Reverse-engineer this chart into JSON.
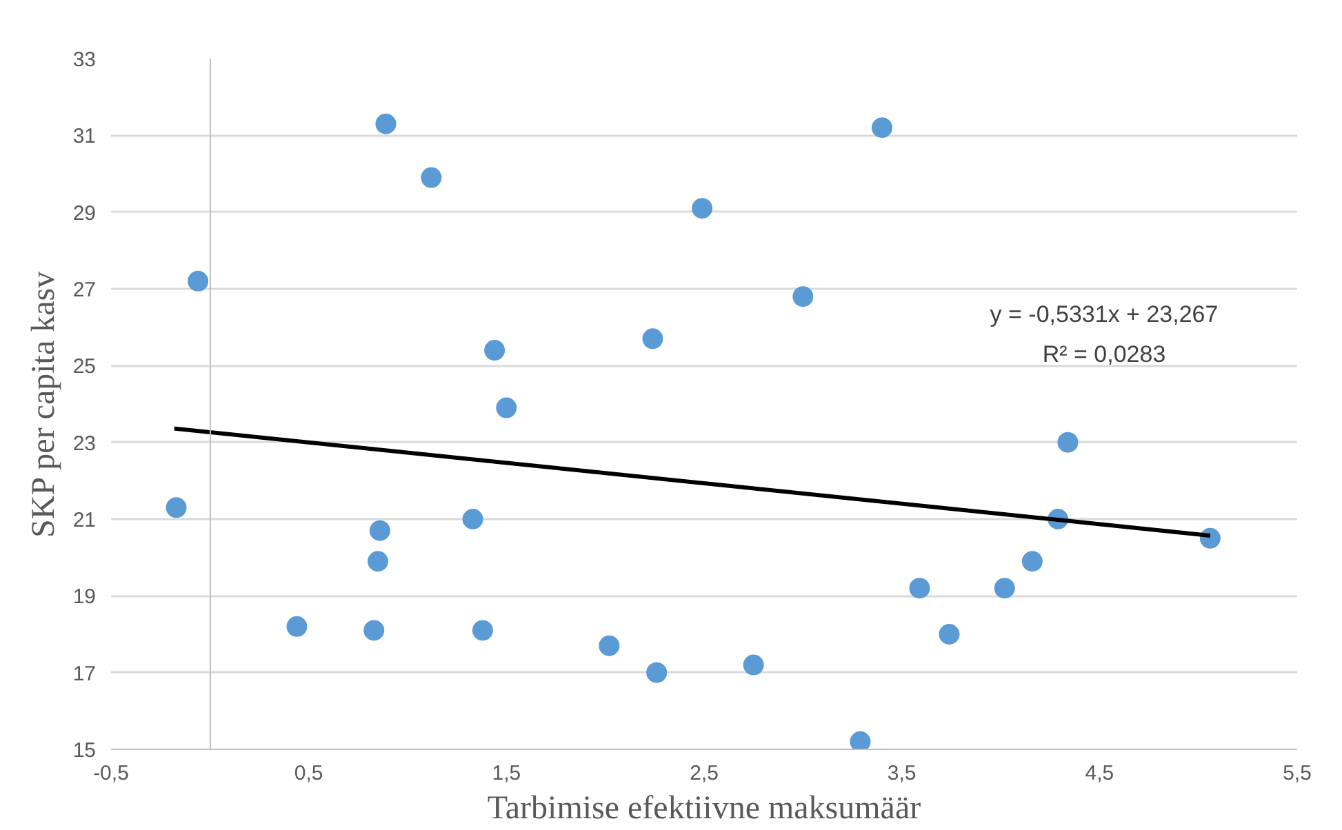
{
  "chart_data": {
    "type": "scatter",
    "xlabel": "Tarbimise efektiivne maksumäär",
    "ylabel": "SKP per capita kasv",
    "annotations": [
      "y = -0,5331x + 23,267",
      "R² = 0,0283"
    ],
    "xlim": [
      -0.5,
      5.5
    ],
    "ylim": [
      15,
      33
    ],
    "xticks": [
      {
        "value": -0.5,
        "label": "-0,5"
      },
      {
        "value": 0.5,
        "label": "0,5"
      },
      {
        "value": 1.5,
        "label": "1,5"
      },
      {
        "value": 2.5,
        "label": "2,5"
      },
      {
        "value": 3.5,
        "label": "3,5"
      },
      {
        "value": 4.5,
        "label": "4,5"
      },
      {
        "value": 5.5,
        "label": "5,5"
      }
    ],
    "yticks": [
      15,
      17,
      19,
      21,
      23,
      25,
      27,
      29,
      31,
      33
    ],
    "grid": "y",
    "series": [
      {
        "marker": "circle",
        "color": "#5b9bd5",
        "x": [
          -0.06,
          -0.17,
          0.89,
          1.12,
          1.44,
          1.5,
          1.33,
          0.86,
          0.85,
          0.44,
          0.83,
          1.38,
          2.02,
          2.26,
          2.24,
          2.49,
          3.4,
          3.0,
          4.34,
          4.29,
          5.06,
          4.16,
          3.59,
          4.02,
          3.74,
          2.75,
          3.29
        ],
        "values": [
          27.2,
          21.3,
          31.3,
          29.9,
          25.4,
          23.9,
          21.0,
          20.7,
          19.9,
          18.2,
          18.1,
          18.1,
          17.7,
          17.0,
          25.7,
          29.1,
          31.2,
          26.8,
          23.0,
          21.0,
          20.5,
          19.9,
          19.2,
          19.2,
          18.0,
          17.2,
          15.2
        ]
      },
      {
        "type": "line",
        "color": "#000000",
        "x": [
          -0.18,
          5.06
        ],
        "values": [
          23.36,
          20.57
        ]
      }
    ]
  }
}
